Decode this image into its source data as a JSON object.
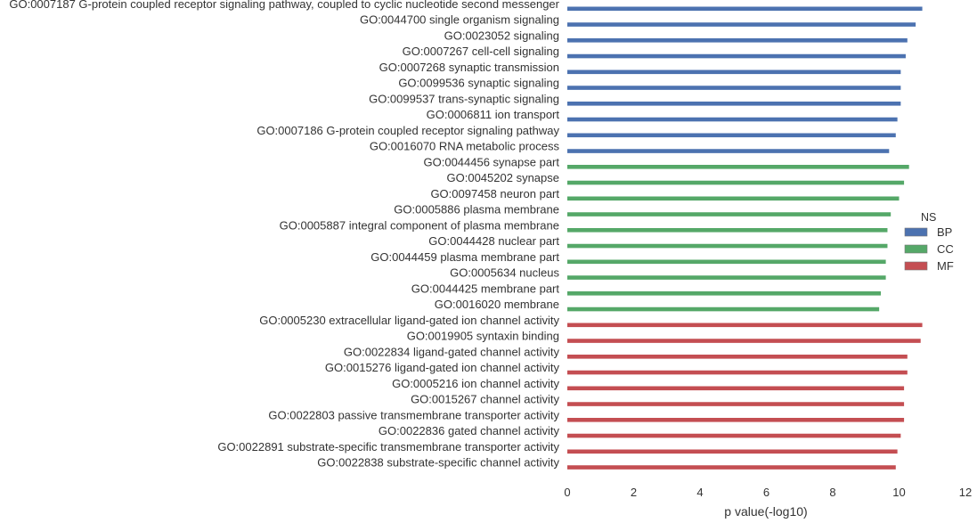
{
  "chart_data": {
    "type": "bar",
    "orientation": "horizontal",
    "xlabel": "p value(-log10)",
    "xlim": [
      0,
      12
    ],
    "xticks": [
      0,
      2,
      4,
      6,
      8,
      10,
      12
    ],
    "grid": false,
    "legend": {
      "title": "NS",
      "placement": "right",
      "entries": [
        {
          "name": "BP",
          "color": "#4c72b0"
        },
        {
          "name": "CC",
          "color": "#55a868"
        },
        {
          "name": "MF",
          "color": "#c44e52"
        }
      ]
    },
    "bars": [
      {
        "label": "GO:0007187 G-protein coupled receptor signaling pathway, coupled to cyclic nucleotide second messenger",
        "value": 10.7,
        "group": "BP"
      },
      {
        "label": "GO:0044700 single organism signaling",
        "value": 10.5,
        "group": "BP"
      },
      {
        "label": "GO:0023052 signaling",
        "value": 10.25,
        "group": "BP"
      },
      {
        "label": "GO:0007267 cell-cell signaling",
        "value": 10.2,
        "group": "BP"
      },
      {
        "label": "GO:0007268 synaptic transmission",
        "value": 10.05,
        "group": "BP"
      },
      {
        "label": "GO:0099536 synaptic signaling",
        "value": 10.05,
        "group": "BP"
      },
      {
        "label": "GO:0099537 trans-synaptic signaling",
        "value": 10.05,
        "group": "BP"
      },
      {
        "label": "GO:0006811 ion transport",
        "value": 9.95,
        "group": "BP"
      },
      {
        "label": "GO:0007186 G-protein coupled receptor signaling pathway",
        "value": 9.9,
        "group": "BP"
      },
      {
        "label": "GO:0016070 RNA metabolic process",
        "value": 9.7,
        "group": "BP"
      },
      {
        "label": "GO:0044456 synapse part",
        "value": 10.3,
        "group": "CC"
      },
      {
        "label": "GO:0045202 synapse",
        "value": 10.15,
        "group": "CC"
      },
      {
        "label": "GO:0097458 neuron part",
        "value": 10.0,
        "group": "CC"
      },
      {
        "label": "GO:0005886 plasma membrane",
        "value": 9.75,
        "group": "CC"
      },
      {
        "label": "GO:0005887 integral component of plasma membrane",
        "value": 9.65,
        "group": "CC"
      },
      {
        "label": "GO:0044428 nuclear part",
        "value": 9.65,
        "group": "CC"
      },
      {
        "label": "GO:0044459 plasma membrane part",
        "value": 9.6,
        "group": "CC"
      },
      {
        "label": "GO:0005634 nucleus",
        "value": 9.6,
        "group": "CC"
      },
      {
        "label": "GO:0044425 membrane part",
        "value": 9.45,
        "group": "CC"
      },
      {
        "label": "GO:0016020 membrane",
        "value": 9.4,
        "group": "CC"
      },
      {
        "label": "GO:0005230 extracellular ligand-gated ion channel activity",
        "value": 10.7,
        "group": "MF"
      },
      {
        "label": "GO:0019905 syntaxin binding",
        "value": 10.65,
        "group": "MF"
      },
      {
        "label": "GO:0022834 ligand-gated channel activity",
        "value": 10.25,
        "group": "MF"
      },
      {
        "label": "GO:0015276 ligand-gated ion channel activity",
        "value": 10.25,
        "group": "MF"
      },
      {
        "label": "GO:0005216 ion channel activity",
        "value": 10.15,
        "group": "MF"
      },
      {
        "label": "GO:0015267 channel activity",
        "value": 10.15,
        "group": "MF"
      },
      {
        "label": "GO:0022803 passive transmembrane transporter activity",
        "value": 10.15,
        "group": "MF"
      },
      {
        "label": "GO:0022836 gated channel activity",
        "value": 10.05,
        "group": "MF"
      },
      {
        "label": "GO:0022891 substrate-specific transmembrane transporter activity",
        "value": 9.95,
        "group": "MF"
      },
      {
        "label": "GO:0022838 substrate-specific channel activity",
        "value": 9.9,
        "group": "MF"
      }
    ]
  }
}
